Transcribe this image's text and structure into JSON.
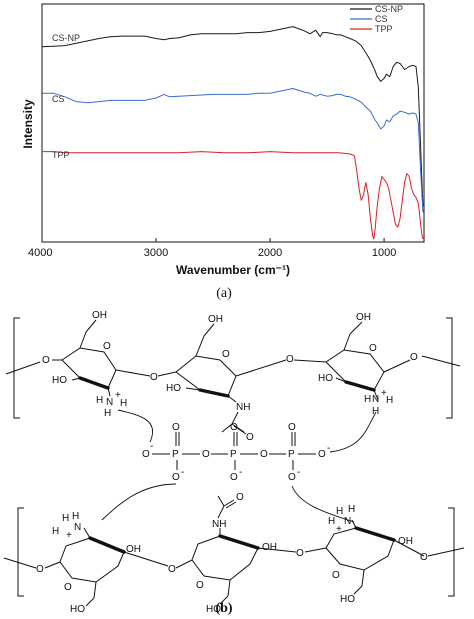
{
  "chart_data": {
    "type": "line",
    "title": "",
    "xlabel": "Wavenumber (cm⁻¹)",
    "ylabel": "Intensity",
    "xlim": [
      4000,
      650
    ],
    "x_reversed": true,
    "x_ticks": [
      "4000",
      "3000",
      "2000",
      "1000"
    ],
    "x_tick_values": [
      4000,
      3000,
      2000,
      1000
    ],
    "y_ticks_shown": false,
    "grid": false,
    "legend_position": "top-right",
    "legend": [
      "CS-NP",
      "CS",
      "TPP"
    ],
    "inline_labels": [
      "CS-NP",
      "CS",
      "TPP"
    ],
    "series": [
      {
        "name": "CS-NP",
        "color": "#1a1a1a",
        "x": [
          4000,
          3900,
          3800,
          3700,
          3600,
          3500,
          3400,
          3300,
          3200,
          3100,
          3000,
          2930,
          2880,
          2800,
          2700,
          2600,
          2500,
          2400,
          2300,
          2200,
          2100,
          2000,
          1900,
          1800,
          1700,
          1650,
          1600,
          1560,
          1540,
          1500,
          1450,
          1410,
          1380,
          1340,
          1300,
          1250,
          1200,
          1150,
          1120,
          1080,
          1060,
          1030,
          1000,
          980,
          950,
          920,
          890,
          860,
          820,
          780,
          750,
          720,
          700,
          680,
          660
        ],
        "y": [
          0.72,
          0.71,
          0.7,
          0.66,
          0.62,
          0.58,
          0.55,
          0.54,
          0.54,
          0.54,
          0.58,
          0.6,
          0.58,
          0.57,
          0.52,
          0.5,
          0.5,
          0.5,
          0.5,
          0.48,
          0.48,
          0.46,
          0.42,
          0.38,
          0.45,
          0.5,
          0.44,
          0.55,
          0.48,
          0.48,
          0.5,
          0.52,
          0.52,
          0.55,
          0.58,
          0.62,
          0.7,
          0.85,
          0.95,
          1.12,
          1.22,
          1.3,
          1.25,
          1.18,
          1.22,
          1.05,
          0.98,
          1.0,
          1.1,
          1.05,
          1.03,
          1.05,
          1.4,
          2.4,
          3.4
        ]
      },
      {
        "name": "CS",
        "color": "#3c6bd6",
        "x": [
          4000,
          3900,
          3800,
          3700,
          3600,
          3500,
          3400,
          3300,
          3200,
          3100,
          3000,
          2930,
          2880,
          2800,
          2700,
          2600,
          2500,
          2400,
          2300,
          2200,
          2100,
          2000,
          1900,
          1800,
          1700,
          1650,
          1600,
          1560,
          1500,
          1450,
          1420,
          1380,
          1340,
          1300,
          1250,
          1200,
          1150,
          1120,
          1080,
          1060,
          1030,
          1000,
          980,
          950,
          920,
          890,
          860,
          820,
          780,
          750,
          720,
          700,
          680,
          660
        ],
        "y": [
          1.5,
          1.5,
          1.56,
          1.64,
          1.66,
          1.64,
          1.62,
          1.62,
          1.62,
          1.62,
          1.58,
          1.52,
          1.56,
          1.55,
          1.54,
          1.53,
          1.52,
          1.52,
          1.52,
          1.52,
          1.5,
          1.5,
          1.46,
          1.42,
          1.48,
          1.5,
          1.55,
          1.52,
          1.55,
          1.54,
          1.52,
          1.52,
          1.55,
          1.56,
          1.6,
          1.65,
          1.75,
          1.8,
          1.95,
          2.0,
          2.1,
          2.05,
          1.95,
          1.98,
          1.88,
          1.85,
          1.8,
          1.82,
          1.85,
          1.83,
          1.85,
          2.0,
          2.8,
          3.5
        ]
      },
      {
        "name": "TPP",
        "color": "#e01c28",
        "x": [
          4000,
          3900,
          3800,
          3600,
          3400,
          3200,
          3000,
          2800,
          2600,
          2400,
          2200,
          2000,
          1800,
          1700,
          1600,
          1500,
          1400,
          1300,
          1260,
          1240,
          1220,
          1200,
          1180,
          1160,
          1140,
          1120,
          1100,
          1090,
          1080,
          1060,
          1040,
          1020,
          1000,
          980,
          960,
          940,
          920,
          900,
          880,
          860,
          840,
          820,
          800,
          780,
          760,
          740,
          720,
          700,
          690,
          680,
          670,
          660
        ],
        "y": [
          2.48,
          2.48,
          2.5,
          2.5,
          2.5,
          2.5,
          2.5,
          2.5,
          2.48,
          2.5,
          2.5,
          2.48,
          2.5,
          2.5,
          2.5,
          2.5,
          2.5,
          2.52,
          2.55,
          2.8,
          3.1,
          3.3,
          3.2,
          3.0,
          3.2,
          3.6,
          3.9,
          3.95,
          3.8,
          3.4,
          3.1,
          2.9,
          2.95,
          3.0,
          3.1,
          3.3,
          3.5,
          3.7,
          3.75,
          3.6,
          3.3,
          3.0,
          2.85,
          2.9,
          3.1,
          3.2,
          3.25,
          3.35,
          3.5,
          3.7,
          3.85,
          3.95
        ]
      }
    ],
    "y_range_arbitrary": [
      0,
      4
    ]
  },
  "panel_a_label": "(a)",
  "panel_b_label": "(b)",
  "scheme": {
    "tpp_atoms": [
      "O",
      "P",
      "O",
      "P",
      "O",
      "P",
      "O"
    ],
    "charge_minus": "-",
    "charge_plus": "+",
    "atoms": {
      "oh": "OH",
      "ho": "HO",
      "o": "O",
      "nh": "NH",
      "n": "N",
      "h": "H"
    }
  }
}
